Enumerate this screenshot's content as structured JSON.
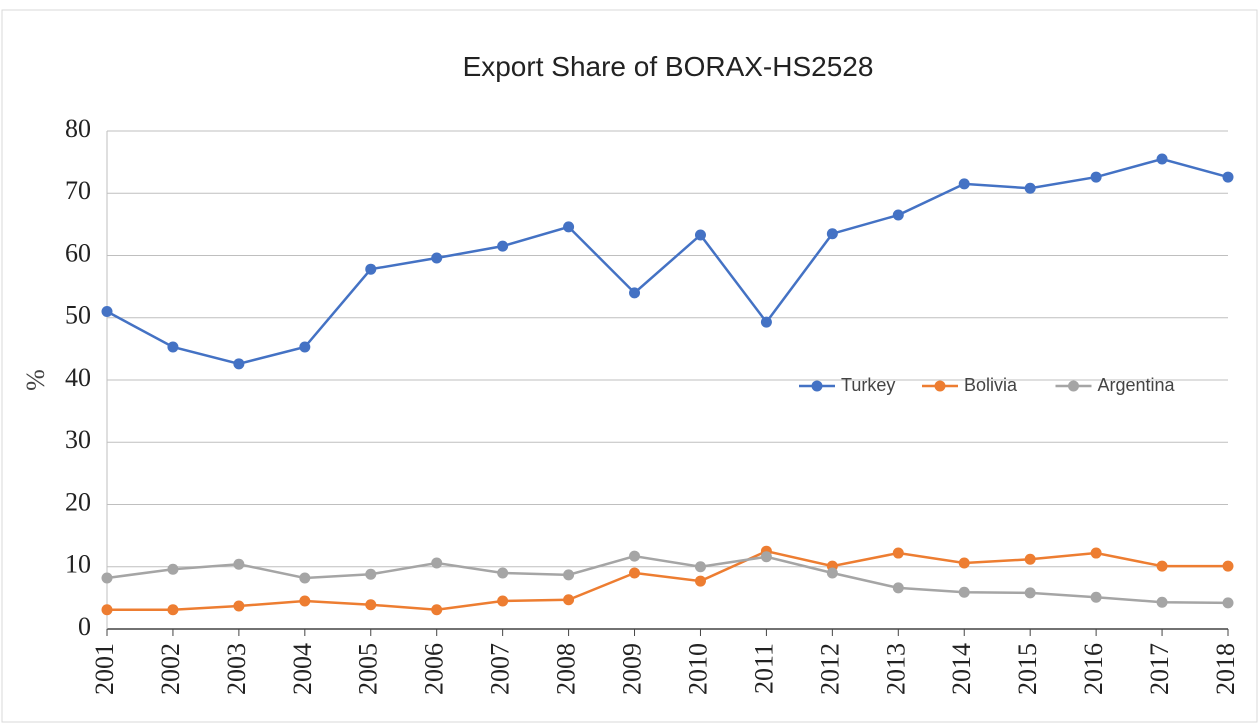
{
  "chart_data": {
    "type": "line",
    "title": "Export Share of BORAX-HS2528",
    "y_label": "%",
    "categories": [
      "2001",
      "2002",
      "2003",
      "2004",
      "2005",
      "2006",
      "2007",
      "2008",
      "2009",
      "2010",
      "2011",
      "2012",
      "2013",
      "2014",
      "2015",
      "2016",
      "2017",
      "2018"
    ],
    "series": [
      {
        "name": "Turkey",
        "color": "#4472c4",
        "values": [
          51,
          45.3,
          42.6,
          45.3,
          57.8,
          59.6,
          61.5,
          64.6,
          54,
          63.3,
          49.3,
          63.5,
          66.5,
          71.5,
          70.8,
          72.6,
          75.5,
          72.6
        ]
      },
      {
        "name": "Bolivia",
        "color": "#ed7d31",
        "values": [
          3.1,
          3.1,
          3.7,
          4.5,
          3.9,
          3.1,
          4.5,
          4.7,
          9,
          7.7,
          12.5,
          10.1,
          12.2,
          10.6,
          11.2,
          12.2,
          10.1,
          10.1
        ]
      },
      {
        "name": "Argentina",
        "color": "#a5a5a5",
        "values": [
          8.2,
          9.6,
          10.4,
          8.2,
          8.8,
          10.6,
          9,
          8.7,
          11.7,
          10,
          11.6,
          9,
          6.6,
          5.9,
          5.8,
          5.1,
          4.3,
          4.2
        ]
      }
    ],
    "ylim": [
      0,
      80
    ],
    "yticks": [
      0,
      10,
      20,
      30,
      40,
      50,
      60,
      70,
      80
    ],
    "grid": true,
    "legend": "right"
  }
}
